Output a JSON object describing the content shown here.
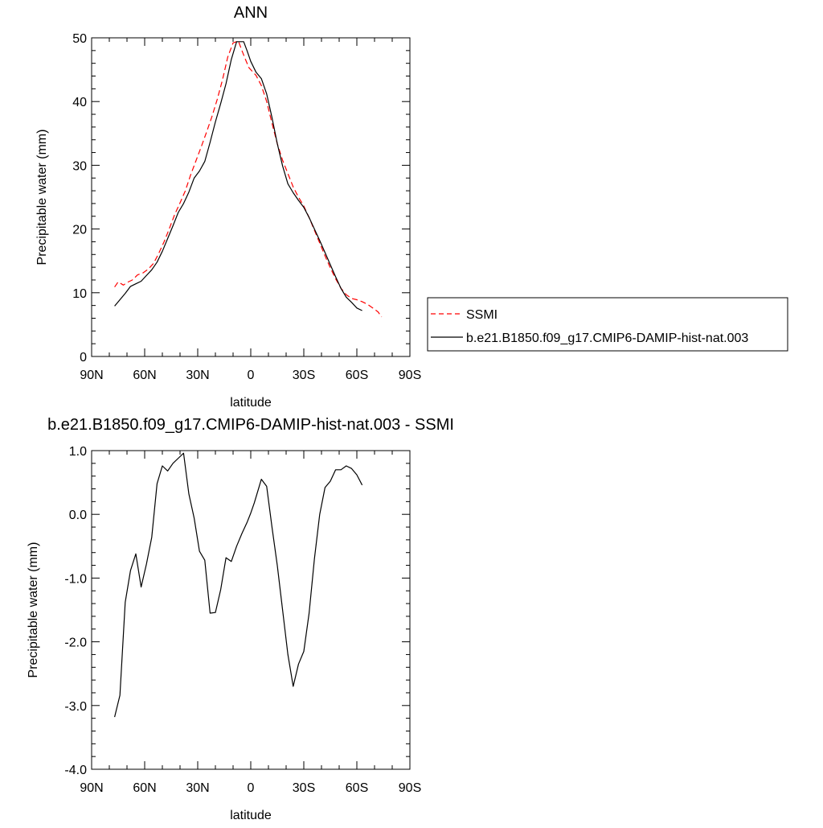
{
  "chart_data": [
    {
      "type": "line",
      "title": "ANN",
      "xlabel": "latitude",
      "ylabel": "Precipitable water (mm)",
      "xlim": [
        90,
        -90
      ],
      "ylim": [
        0,
        50
      ],
      "x_ticks": [
        90,
        60,
        30,
        0,
        -30,
        -60,
        -90
      ],
      "x_tick_labels": [
        "90N",
        "60N",
        "30N",
        "0",
        "30S",
        "60S",
        "90S"
      ],
      "y_ticks": [
        0,
        10,
        20,
        30,
        40,
        50
      ],
      "y_tick_labels": [
        "0",
        "10",
        "20",
        "30",
        "40",
        "50"
      ],
      "grid": false,
      "legend": {
        "placement": "right",
        "entries": [
          "SSMI",
          "b.e21.B1850.f09_g17.CMIP6-DAMIP-hist-nat.003"
        ]
      },
      "series": [
        {
          "name": "SSMI",
          "color": "#ff0000",
          "dash": "dashed",
          "x": [
            77,
            75,
            72,
            70,
            67,
            64,
            61,
            58,
            55,
            52,
            49,
            46,
            43,
            40,
            37,
            34,
            31,
            28,
            25,
            22,
            19,
            16,
            13,
            10,
            7,
            5,
            3,
            1,
            0,
            -3,
            -6,
            -9,
            -12,
            -15,
            -18,
            -21,
            -24,
            -27,
            -30,
            -33,
            -36,
            -39,
            -42,
            -45,
            -48,
            -51,
            -54,
            -57,
            -60,
            -63,
            -66,
            -69,
            -72,
            -74
          ],
          "y": [
            10.9,
            11.7,
            11.2,
            11.6,
            12.0,
            12.8,
            13.1,
            13.7,
            14.6,
            16.2,
            18.0,
            20.1,
            22.3,
            24.1,
            26.0,
            28.5,
            30.7,
            32.9,
            35.2,
            37.6,
            40.3,
            43.4,
            47.0,
            49.2,
            49.5,
            48.0,
            46.6,
            45.3,
            45.0,
            44.1,
            42.5,
            40.0,
            36.6,
            33.4,
            30.8,
            28.7,
            26.6,
            25.0,
            23.6,
            21.8,
            19.8,
            17.8,
            15.8,
            13.9,
            12.2,
            10.7,
            9.7,
            9.1,
            8.9,
            8.6,
            8.2,
            7.6,
            7.0,
            6.2
          ]
        },
        {
          "name": "b.e21.B1850.f09_g17.CMIP6-DAMIP-hist-nat.003",
          "color": "#000000",
          "dash": "solid",
          "x": [
            77,
            74,
            71,
            68,
            65,
            62,
            59,
            56,
            53,
            50,
            47,
            44,
            41,
            38,
            35,
            32,
            29,
            26,
            23,
            20,
            17,
            14,
            11,
            8,
            6,
            4,
            2,
            0,
            -3,
            -6,
            -9,
            -12,
            -15,
            -18,
            -21,
            -24,
            -27,
            -30,
            -33,
            -36,
            -39,
            -42,
            -45,
            -48,
            -51,
            -54,
            -57,
            -60,
            -63
          ],
          "y": [
            7.9,
            8.9,
            9.9,
            11.0,
            11.4,
            11.8,
            12.7,
            13.6,
            14.8,
            16.5,
            18.5,
            20.5,
            22.6,
            24.0,
            25.8,
            28.0,
            29.1,
            30.6,
            33.6,
            36.8,
            39.7,
            42.8,
            46.6,
            49.4,
            49.4,
            49.4,
            47.9,
            46.3,
            44.6,
            43.6,
            41.2,
            37.5,
            33.4,
            29.9,
            27.1,
            25.7,
            24.5,
            23.4,
            21.8,
            20.0,
            18.2,
            16.3,
            14.4,
            12.5,
            10.7,
            9.3,
            8.5,
            7.6,
            7.2
          ]
        }
      ]
    },
    {
      "type": "line",
      "title": "b.e21.B1850.f09_g17.CMIP6-DAMIP-hist-nat.003 - SSMI",
      "xlabel": "latitude",
      "ylabel": "Precipitable water (mm)",
      "xlim": [
        90,
        -90
      ],
      "ylim": [
        -4.0,
        1.0
      ],
      "x_ticks": [
        90,
        60,
        30,
        0,
        -30,
        -60,
        -90
      ],
      "x_tick_labels": [
        "90N",
        "60N",
        "30N",
        "0",
        "30S",
        "60S",
        "90S"
      ],
      "y_ticks": [
        -4.0,
        -3.0,
        -2.0,
        -1.0,
        0.0,
        1.0
      ],
      "y_tick_labels": [
        "-4.0",
        "-3.0",
        "-2.0",
        "-1.0",
        "0.0",
        "1.0"
      ],
      "grid": false,
      "series": [
        {
          "color": "#000000",
          "dash": "solid",
          "x": [
            77,
            74,
            71,
            68,
            65,
            62,
            59,
            56,
            53,
            50,
            47,
            44,
            41,
            38,
            35,
            32,
            29,
            26,
            23,
            20,
            17,
            14,
            11,
            8,
            5,
            2,
            0,
            -2,
            -6,
            -9,
            -12,
            -15,
            -18,
            -21,
            -24,
            -27,
            -30,
            -33,
            -36,
            -39,
            -42,
            -45,
            -48,
            -51,
            -54,
            -57,
            -60,
            -63
          ],
          "y": [
            -3.18,
            -2.84,
            -1.38,
            -0.88,
            -0.62,
            -1.14,
            -0.78,
            -0.36,
            0.48,
            0.76,
            0.68,
            0.8,
            0.88,
            0.96,
            0.32,
            -0.06,
            -0.58,
            -0.72,
            -1.55,
            -1.54,
            -1.18,
            -0.68,
            -0.74,
            -0.5,
            -0.3,
            -0.12,
            0.02,
            0.18,
            0.55,
            0.44,
            -0.2,
            -0.8,
            -1.5,
            -2.2,
            -2.7,
            -2.35,
            -2.15,
            -1.55,
            -0.7,
            0.0,
            0.42,
            0.52,
            0.7,
            0.7,
            0.76,
            0.72,
            0.62,
            0.46
          ]
        }
      ]
    }
  ]
}
